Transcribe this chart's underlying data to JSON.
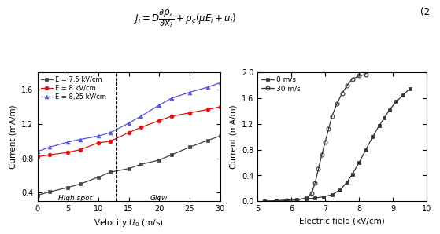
{
  "eq_number": "(2",
  "left_plot": {
    "xlabel": "Velocity $U_0$ (m/s)",
    "ylabel": "Current (mA/m)",
    "xlim": [
      0,
      30
    ],
    "ylim": [
      0.3,
      1.8
    ],
    "yticks": [
      0.4,
      0.8,
      1.2,
      1.6
    ],
    "xticks": [
      0,
      5,
      10,
      15,
      20,
      25,
      30
    ],
    "vline_x": 13,
    "label_highspot": "High spot",
    "label_glow": "Glow",
    "series": [
      {
        "label": "E = 7,5 kV/cm",
        "color": "#444444",
        "marker": "s",
        "markersize": 3.5,
        "x": [
          0,
          2,
          5,
          7,
          10,
          12,
          15,
          17,
          20,
          22,
          25,
          28,
          30
        ],
        "y": [
          0.37,
          0.41,
          0.46,
          0.5,
          0.58,
          0.64,
          0.68,
          0.73,
          0.78,
          0.84,
          0.93,
          1.01,
          1.06
        ]
      },
      {
        "label": "E = 8 kV/cm",
        "color": "#dd1111",
        "marker": "o",
        "markersize": 3.5,
        "x": [
          0,
          2,
          5,
          7,
          10,
          12,
          15,
          17,
          20,
          22,
          25,
          28,
          30
        ],
        "y": [
          0.82,
          0.84,
          0.87,
          0.9,
          0.98,
          1.0,
          1.1,
          1.16,
          1.24,
          1.29,
          1.33,
          1.37,
          1.4
        ]
      },
      {
        "label": "E = 8,25 kV/cm",
        "color": "#5555dd",
        "marker": "^",
        "markersize": 3.5,
        "x": [
          0,
          2,
          5,
          7,
          10,
          12,
          15,
          17,
          20,
          22,
          25,
          28,
          30
        ],
        "y": [
          0.88,
          0.93,
          0.99,
          1.02,
          1.06,
          1.1,
          1.21,
          1.29,
          1.42,
          1.5,
          1.57,
          1.63,
          1.68
        ]
      }
    ]
  },
  "right_plot": {
    "xlabel": "Electric field (kV/cm)",
    "ylabel": "Current (mA/m)",
    "xlim": [
      5,
      10
    ],
    "ylim": [
      0,
      2.0
    ],
    "yticks": [
      0.0,
      0.4,
      0.8,
      1.2,
      1.6,
      2.0
    ],
    "xticks": [
      5,
      6,
      7,
      8,
      9,
      10
    ],
    "series": [
      {
        "label": "0 m/s",
        "color": "#333333",
        "marker": "s",
        "fillstyle": "full",
        "markersize": 3.5,
        "x": [
          5.2,
          5.55,
          5.85,
          6.15,
          6.45,
          6.7,
          6.95,
          7.2,
          7.45,
          7.65,
          7.8,
          8.0,
          8.2,
          8.4,
          8.6,
          8.75,
          8.9,
          9.1,
          9.3,
          9.5
        ],
        "y": [
          0.0,
          0.01,
          0.02,
          0.03,
          0.04,
          0.05,
          0.07,
          0.1,
          0.18,
          0.3,
          0.42,
          0.6,
          0.8,
          1.0,
          1.18,
          1.3,
          1.42,
          1.55,
          1.65,
          1.75
        ]
      },
      {
        "label": "30 m/s",
        "color": "#333333",
        "marker": "o",
        "fillstyle": "none",
        "markersize": 3.5,
        "x": [
          5.2,
          5.55,
          5.85,
          6.15,
          6.45,
          6.6,
          6.7,
          6.8,
          6.9,
          7.0,
          7.1,
          7.2,
          7.35,
          7.5,
          7.65,
          7.8,
          8.0,
          8.2
        ],
        "y": [
          0.0,
          0.0,
          0.01,
          0.02,
          0.05,
          0.12,
          0.28,
          0.5,
          0.72,
          0.92,
          1.12,
          1.32,
          1.52,
          1.68,
          1.8,
          1.9,
          1.95,
          1.97
        ]
      }
    ]
  }
}
